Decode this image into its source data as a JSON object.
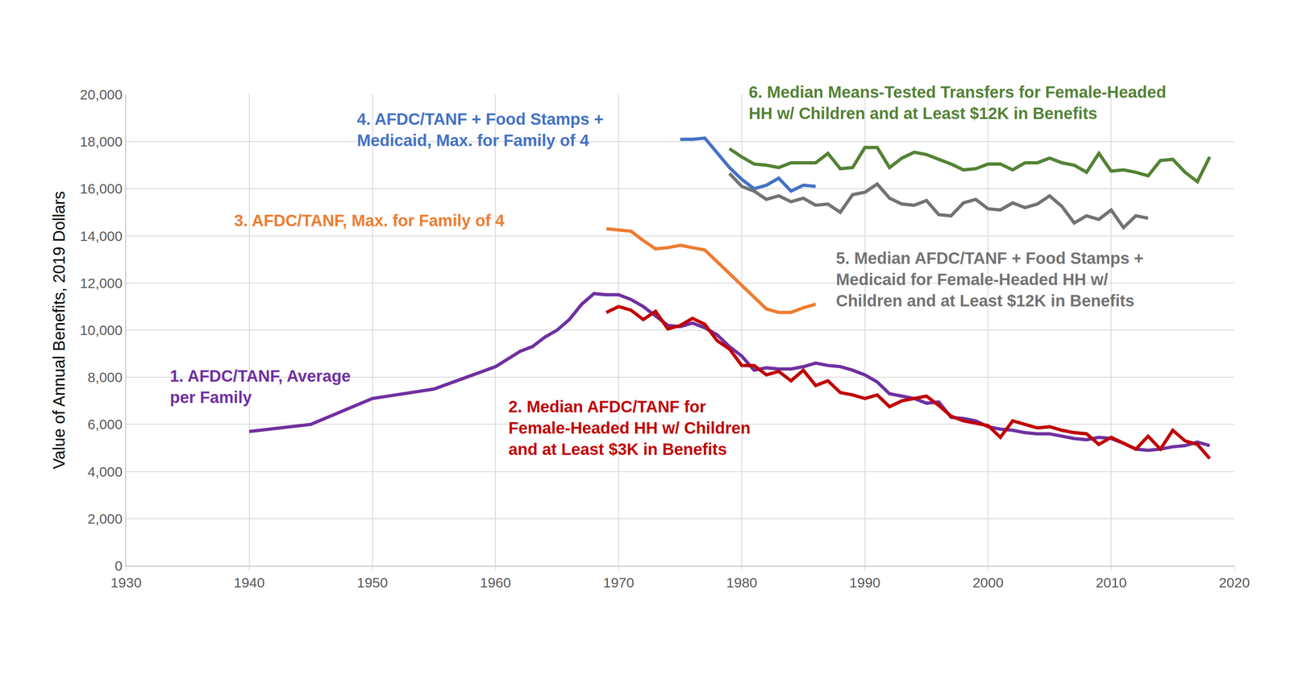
{
  "chart_data": {
    "type": "line",
    "y_label": "Value of Annual Benefits, 2019 Dollars",
    "xlim": [
      1930,
      2020
    ],
    "xticks": [
      1930,
      1940,
      1950,
      1960,
      1970,
      1980,
      1990,
      2000,
      2010,
      2020
    ],
    "ylim": [
      0,
      20000
    ],
    "yticks": [
      0,
      {
        "value": 2000,
        "label": "2,000"
      },
      {
        "value": 4000,
        "label": "4,000"
      },
      {
        "value": 6000,
        "label": "6,000"
      },
      {
        "value": 8000,
        "label": "8,000"
      },
      {
        "value": 10000,
        "label": "10,000"
      },
      {
        "value": 12000,
        "label": "12,000"
      },
      {
        "value": 14000,
        "label": "14,000"
      },
      {
        "value": 16000,
        "label": "16,000"
      },
      {
        "value": 18000,
        "label": "18,000"
      },
      {
        "value": 20000,
        "label": "20,000"
      }
    ],
    "grid": true,
    "series": [
      {
        "name": "1. AFDC/TANF, Average\nper Family",
        "color": "#7030a0",
        "x": [
          1940,
          1945,
          1950,
          1955,
          1960,
          1962,
          1963,
          1964,
          1965,
          1966,
          1967,
          1968,
          1969,
          1970,
          1971,
          1972,
          1973,
          1974,
          1975,
          1976,
          1977,
          1978,
          1979,
          1980,
          1981,
          1982,
          1983,
          1984,
          1985,
          1986,
          1987,
          1988,
          1989,
          1990,
          1991,
          1992,
          1993,
          1994,
          1995,
          1996,
          1997,
          1998,
          1999,
          2000,
          2001,
          2002,
          2003,
          2004,
          2005,
          2006,
          2007,
          2008,
          2009,
          2010,
          2011,
          2012,
          2013,
          2014,
          2015,
          2016,
          2017,
          2018
        ],
        "values": [
          5700,
          6000,
          7100,
          7500,
          8450,
          9100,
          9300,
          9700,
          10000,
          10450,
          11100,
          11550,
          11500,
          11500,
          11300,
          11000,
          10600,
          10200,
          10150,
          10300,
          10100,
          9800,
          9300,
          8900,
          8300,
          8400,
          8350,
          8350,
          8450,
          8600,
          8500,
          8450,
          8300,
          8100,
          7800,
          7300,
          7200,
          7100,
          6900,
          6950,
          6300,
          6250,
          6150,
          5900,
          5800,
          5750,
          5650,
          5600,
          5600,
          5500,
          5400,
          5350,
          5450,
          5400,
          5200,
          4950,
          4900,
          4950,
          5050,
          5100,
          5250,
          5100
        ]
      },
      {
        "name": "2. Median AFDC/TANF for\nFemale-Headed HH w/ Children\nand at Least $3K in Benefits",
        "color": "#c00000",
        "x": [
          1969,
          1970,
          1971,
          1972,
          1973,
          1974,
          1975,
          1976,
          1977,
          1978,
          1979,
          1980,
          1981,
          1982,
          1983,
          1984,
          1985,
          1986,
          1987,
          1988,
          1989,
          1990,
          1991,
          1992,
          1993,
          1994,
          1995,
          1996,
          1997,
          1998,
          1999,
          2000,
          2001,
          2002,
          2003,
          2004,
          2005,
          2006,
          2007,
          2008,
          2009,
          2010,
          2011,
          2012,
          2013,
          2014,
          2015,
          2016,
          2017,
          2018
        ],
        "values": [
          10750,
          11000,
          10850,
          10450,
          10800,
          10050,
          10200,
          10500,
          10250,
          9550,
          9200,
          8500,
          8500,
          8100,
          8250,
          7850,
          8300,
          7650,
          7850,
          7350,
          7250,
          7100,
          7250,
          6750,
          7000,
          7100,
          7200,
          6800,
          6350,
          6150,
          6050,
          5950,
          5450,
          6150,
          6000,
          5850,
          5900,
          5750,
          5650,
          5600,
          5150,
          5450,
          5200,
          4950,
          5500,
          4950,
          5750,
          5300,
          5150,
          4550
        ]
      },
      {
        "name": "3. AFDC/TANF, Max. for Family of 4",
        "color": "#ed7d31",
        "x": [
          1969,
          1970,
          1971,
          1972,
          1973,
          1974,
          1975,
          1976,
          1977,
          1978,
          1979,
          1980,
          1981,
          1982,
          1983,
          1984,
          1985,
          1986
        ],
        "values": [
          14300,
          14250,
          14200,
          13800,
          13450,
          13500,
          13600,
          13500,
          13400,
          12900,
          12400,
          11900,
          11400,
          10900,
          10750,
          10750,
          10950,
          11100
        ]
      },
      {
        "name": "4. AFDC/TANF + Food Stamps +\nMedicaid, Max. for Family of 4",
        "color": "#4472c4",
        "x": [
          1975,
          1976,
          1977,
          1978,
          1979,
          1980,
          1981,
          1982,
          1983,
          1984,
          1985,
          1986
        ],
        "values": [
          18100,
          18100,
          18150,
          17500,
          16900,
          16400,
          16000,
          16150,
          16450,
          15900,
          16150,
          16100
        ]
      },
      {
        "name": "5. Median AFDC/TANF + Food Stamps +\nMedicaid for Female-Headed HH w/\nChildren and at Least $12K in Benefits",
        "color": "#737373",
        "x": [
          1979,
          1980,
          1981,
          1982,
          1983,
          1984,
          1985,
          1986,
          1987,
          1988,
          1989,
          1990,
          1991,
          1992,
          1993,
          1994,
          1995,
          1996,
          1997,
          1998,
          1999,
          2000,
          2001,
          2002,
          2003,
          2004,
          2005,
          2006,
          2007,
          2008,
          2009,
          2010,
          2011,
          2012,
          2013
        ],
        "values": [
          16650,
          16100,
          15900,
          15550,
          15700,
          15450,
          15600,
          15300,
          15350,
          15000,
          15750,
          15850,
          16200,
          15600,
          15350,
          15300,
          15500,
          14900,
          14850,
          15400,
          15550,
          15150,
          15100,
          15400,
          15200,
          15350,
          15700,
          15250,
          14550,
          14850,
          14700,
          15100,
          14350,
          14850,
          14750
        ]
      },
      {
        "name": "6. Median Means-Tested Transfers for Female-Headed\nHH w/ Children and at Least $12K in Benefits",
        "color": "#548235",
        "x": [
          1979,
          1980,
          1981,
          1982,
          1983,
          1984,
          1985,
          1986,
          1987,
          1988,
          1989,
          1990,
          1991,
          1992,
          1993,
          1994,
          1995,
          1996,
          1997,
          1998,
          1999,
          2000,
          2001,
          2002,
          2003,
          2004,
          2005,
          2006,
          2007,
          2008,
          2009,
          2010,
          2011,
          2012,
          2013,
          2014,
          2015,
          2016,
          2017,
          2018
        ],
        "values": [
          17700,
          17350,
          17050,
          17000,
          16900,
          17100,
          17100,
          17100,
          17500,
          16850,
          16900,
          17750,
          17750,
          16900,
          17300,
          17550,
          17450,
          17250,
          17050,
          16800,
          16850,
          17050,
          17050,
          16800,
          17100,
          17100,
          17300,
          17100,
          17000,
          16700,
          17500,
          16750,
          16800,
          16700,
          16550,
          17200,
          17250,
          16700,
          16300,
          17350
        ]
      }
    ]
  }
}
